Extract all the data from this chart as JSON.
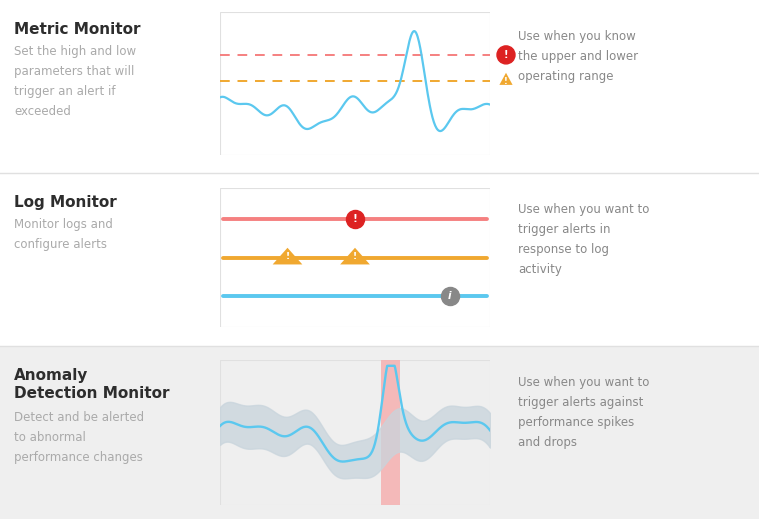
{
  "bg_color": "#ffffff",
  "row3_bg": "#efefef",
  "title_color": "#2d2d2d",
  "desc_color": "#aaaaaa",
  "right_color": "#888888",
  "divider_color": "#e0e0e0",
  "rows": [
    {
      "title": "Metric Monitor",
      "desc": "Set the high and low\nparameters that will\ntrigger an alert if\nexceeded",
      "right": "Use when you know\nthe upper and lower\noperating range",
      "bg": "#ffffff"
    },
    {
      "title": "Log Monitor",
      "desc": "Monitor logs and\nconfigure alerts",
      "right": "Use when you want to\ntrigger alerts in\nresponse to log\nactivity",
      "bg": "#ffffff"
    },
    {
      "title": "Anomaly\nDetection Monitor",
      "desc": "Detect and be alerted\nto abnormal\nperformance changes",
      "right": "Use when you want to\ntrigger alerts against\nperformance spikes\nand drops",
      "bg": "#efefef"
    }
  ],
  "chart_blue": "#5bc8ef",
  "chart_red_line": "#f47c7c",
  "chart_orange_line": "#f0a830",
  "chart_band": "#c8d4dc",
  "chart_spike_bg": "#f5b0b0"
}
